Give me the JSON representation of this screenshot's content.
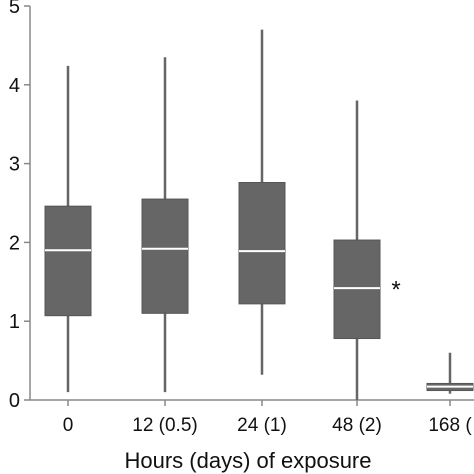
{
  "chart_data": {
    "type": "boxplot",
    "xlabel": "Hours (days) of exposure",
    "ylabel": "",
    "ylim": [
      0,
      5
    ],
    "yticks": [
      0,
      1,
      2,
      3,
      4,
      5
    ],
    "categories": [
      "0",
      "12 (0.5)",
      "24 (1)",
      "48 (2)",
      "168 ("
    ],
    "boxes": [
      {
        "whisker_low": 0.1,
        "q1": 1.07,
        "median": 1.9,
        "q3": 2.46,
        "whisker_high": 4.24
      },
      {
        "whisker_low": 0.1,
        "q1": 1.1,
        "median": 1.92,
        "q3": 2.55,
        "whisker_high": 4.35
      },
      {
        "whisker_low": 0.32,
        "q1": 1.22,
        "median": 1.89,
        "q3": 2.76,
        "whisker_high": 4.7
      },
      {
        "whisker_low": 0.0,
        "q1": 0.78,
        "median": 1.42,
        "q3": 2.03,
        "whisker_high": 3.8
      },
      {
        "whisker_low": 0.08,
        "q1": 0.12,
        "median": 0.17,
        "q3": 0.21,
        "whisker_high": 0.6
      }
    ],
    "annotations": [
      {
        "text": "*",
        "category_index": 3,
        "y": 1.4
      }
    ],
    "box_color": "#666666",
    "median_color": "#ffffff",
    "axis_color": "#888888",
    "grid": false
  }
}
